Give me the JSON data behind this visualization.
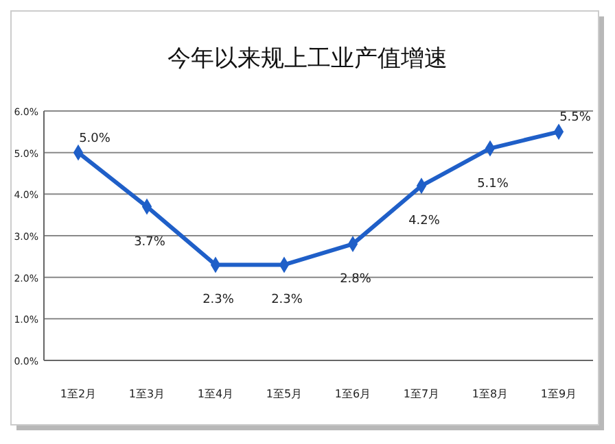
{
  "chart_data": {
    "type": "line",
    "title": "今年以来规上工业产值增速",
    "categories": [
      "1至2月",
      "1至3月",
      "1至4月",
      "1至5月",
      "1至6月",
      "1至7月",
      "1至8月",
      "1至9月"
    ],
    "series": [
      {
        "color": "#1f5fc8",
        "values": [
          5.0,
          3.7,
          2.3,
          2.3,
          2.8,
          4.2,
          5.1,
          5.5
        ]
      }
    ],
    "ylim": [
      0,
      6
    ],
    "yticks": [
      {
        "value": 0,
        "label": "0.0%"
      },
      {
        "value": 1,
        "label": "1.0%"
      },
      {
        "value": 2,
        "label": "2.0%"
      },
      {
        "value": 3,
        "label": "3.0%"
      },
      {
        "value": 4,
        "label": "4.0%"
      },
      {
        "value": 5,
        "label": "5.0%"
      },
      {
        "value": 6,
        "label": "6.0%"
      }
    ],
    "value_labels": [
      "5.0%",
      "3.7%",
      "2.3%",
      "2.3%",
      "2.8%",
      "4.2%",
      "5.1%",
      "5.5%"
    ],
    "grid": "y",
    "marker": "diamond",
    "line_style": "solid"
  }
}
